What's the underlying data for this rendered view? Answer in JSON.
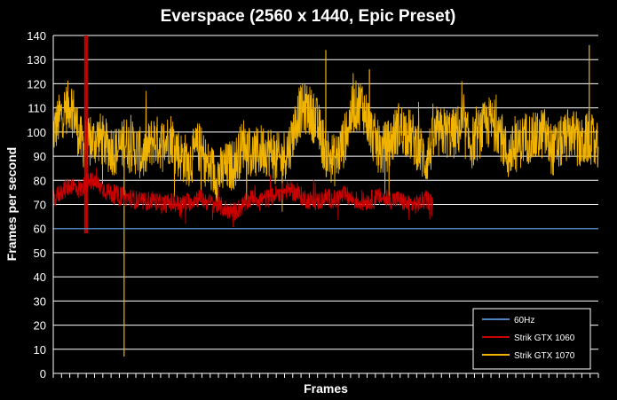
{
  "chart_data": {
    "type": "line",
    "title": "Everspace (2560 x 1440, Epic Preset)",
    "xlabel": "Frames",
    "ylabel": "Frames per second",
    "ylim": [
      0,
      140
    ],
    "yticks": [
      0,
      10,
      20,
      30,
      40,
      50,
      60,
      70,
      80,
      90,
      100,
      110,
      120,
      130,
      140
    ],
    "grid": true,
    "legend_position": "bottom-right",
    "x_extent": [
      0,
      600
    ],
    "series": [
      {
        "name": "60Hz",
        "color": "#4f81bd",
        "x": [
          0,
          600
        ],
        "values": [
          60,
          60
        ]
      },
      {
        "name": "Strik GTX 1060",
        "color": "#cc0000",
        "x": [
          0,
          10,
          20,
          30,
          40,
          50,
          60,
          70,
          80,
          90,
          100,
          110,
          120,
          130,
          140,
          150,
          160,
          170,
          180,
          190,
          200,
          210,
          220,
          230,
          240,
          250,
          260,
          270,
          280,
          290,
          300,
          310,
          320,
          330,
          340,
          350,
          360,
          370,
          380,
          390,
          400,
          410,
          418
        ],
        "values": [
          72,
          76,
          78,
          76,
          80,
          78,
          75,
          74,
          73,
          72,
          71,
          72,
          70,
          71,
          70,
          71,
          73,
          71,
          70,
          68,
          67,
          70,
          73,
          72,
          73,
          75,
          76,
          74,
          72,
          71,
          73,
          72,
          74,
          72,
          71,
          72,
          73,
          72,
          72,
          70,
          70,
          72,
          71
        ],
        "spike_max": 140,
        "spike_min": 58
      },
      {
        "name": "Strik GTX 1070",
        "color": "#f0b400",
        "x": [
          0,
          10,
          20,
          30,
          40,
          50,
          60,
          70,
          80,
          90,
          100,
          110,
          120,
          130,
          140,
          150,
          160,
          170,
          180,
          190,
          200,
          210,
          220,
          230,
          240,
          250,
          260,
          270,
          280,
          290,
          300,
          310,
          320,
          330,
          340,
          350,
          360,
          370,
          380,
          390,
          400,
          410,
          420,
          430,
          440,
          450,
          460,
          470,
          480,
          490,
          500,
          510,
          520,
          530,
          540,
          550,
          560,
          570,
          580,
          590,
          600
        ],
        "values": [
          100,
          108,
          112,
          96,
          95,
          98,
          94,
          92,
          96,
          93,
          90,
          97,
          95,
          98,
          90,
          88,
          94,
          86,
          82,
          85,
          87,
          96,
          90,
          93,
          92,
          88,
          94,
          108,
          110,
          104,
          92,
          88,
          96,
          110,
          112,
          100,
          92,
          95,
          102,
          100,
          95,
          88,
          98,
          100,
          99,
          102,
          95,
          100,
          104,
          102,
          90,
          94,
          98,
          97,
          100,
          92,
          96,
          100,
          94,
          98,
          92
        ],
        "spike_max": 136,
        "spike_min": 7
      }
    ]
  }
}
